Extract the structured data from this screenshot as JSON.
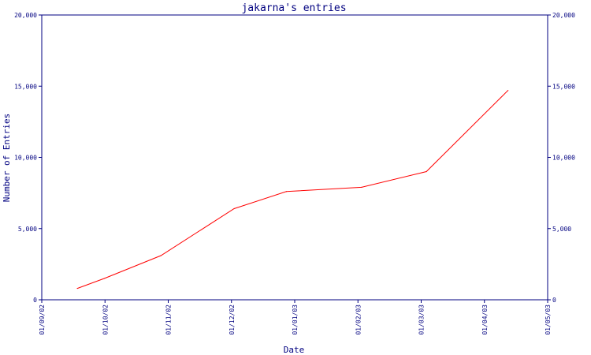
{
  "chart_data": {
    "type": "line",
    "title": "jakarna's entries",
    "xlabel": "Date",
    "ylabel": "Number of Entries",
    "x_ticks": [
      "01/09/02",
      "01/10/02",
      "01/11/02",
      "01/12/02",
      "01/01/03",
      "01/02/03",
      "01/03/03",
      "01/04/03",
      "01/05/03"
    ],
    "y_ticks": [
      "0",
      "5,000",
      "10,000",
      "15,000",
      "20,000"
    ],
    "ylim": [
      0,
      20000
    ],
    "xlim": [
      "2002-09-01",
      "2003-05-01"
    ],
    "grid": false,
    "legend": "none",
    "series": [
      {
        "color": "#ff0000",
        "points": [
          {
            "x": "2002-09-18",
            "y": 800
          },
          {
            "x": "2002-10-01",
            "y": 1500
          },
          {
            "x": "2002-10-28",
            "y": 3100
          },
          {
            "x": "2002-12-02",
            "y": 6400
          },
          {
            "x": "2002-12-27",
            "y": 7600
          },
          {
            "x": "2003-02-01",
            "y": 7900
          },
          {
            "x": "2003-03-04",
            "y": 9000
          },
          {
            "x": "2003-04-12",
            "y": 14700
          }
        ]
      }
    ],
    "axis_color": "#000080"
  }
}
